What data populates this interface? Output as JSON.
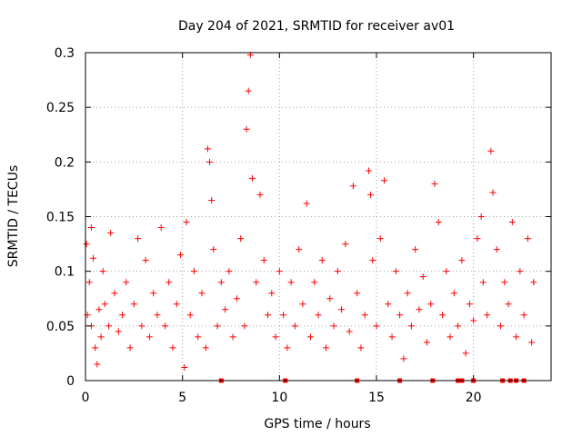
{
  "chart_data": {
    "type": "scatter",
    "title": "Day 204 of 2021, SRMTID for receiver av01",
    "xlabel": "GPS time / hours",
    "ylabel": "SRMTID / TECUs",
    "xlim": [
      0,
      24
    ],
    "ylim": [
      0,
      0.3
    ],
    "x_ticks": [
      0,
      5,
      10,
      15,
      20
    ],
    "x_tick_labels": [
      "0",
      "5",
      "10",
      "15",
      "20"
    ],
    "y_ticks": [
      0,
      0.05,
      0.1,
      0.15,
      0.2,
      0.25,
      0.3
    ],
    "y_tick_labels": [
      "0",
      "0.05",
      "0.1",
      "0.15",
      "0.2",
      "0.25",
      "0.3"
    ],
    "grid": true,
    "marker": "plus",
    "series_color": "#ff0000",
    "series": [
      {
        "name": "SRMTID",
        "points": [
          [
            0.05,
            0.125
          ],
          [
            0.1,
            0.06
          ],
          [
            0.2,
            0.09
          ],
          [
            0.3,
            0.14
          ],
          [
            0.3,
            0.05
          ],
          [
            0.4,
            0.112
          ],
          [
            0.5,
            0.03
          ],
          [
            0.6,
            0.015
          ],
          [
            0.7,
            0.065
          ],
          [
            0.8,
            0.04
          ],
          [
            0.9,
            0.1
          ],
          [
            1.0,
            0.07
          ],
          [
            1.2,
            0.05
          ],
          [
            1.3,
            0.135
          ],
          [
            1.5,
            0.08
          ],
          [
            1.7,
            0.045
          ],
          [
            1.9,
            0.06
          ],
          [
            2.1,
            0.09
          ],
          [
            2.3,
            0.03
          ],
          [
            2.5,
            0.07
          ],
          [
            2.7,
            0.13
          ],
          [
            2.9,
            0.05
          ],
          [
            3.1,
            0.11
          ],
          [
            3.3,
            0.04
          ],
          [
            3.5,
            0.08
          ],
          [
            3.7,
            0.06
          ],
          [
            3.9,
            0.14
          ],
          [
            4.1,
            0.05
          ],
          [
            4.3,
            0.09
          ],
          [
            4.5,
            0.03
          ],
          [
            4.7,
            0.07
          ],
          [
            4.9,
            0.115
          ],
          [
            5.1,
            0.012
          ],
          [
            5.2,
            0.145
          ],
          [
            5.4,
            0.06
          ],
          [
            5.6,
            0.1
          ],
          [
            5.8,
            0.04
          ],
          [
            6.0,
            0.08
          ],
          [
            6.2,
            0.03
          ],
          [
            6.3,
            0.212
          ],
          [
            6.4,
            0.2
          ],
          [
            6.5,
            0.165
          ],
          [
            6.6,
            0.12
          ],
          [
            6.8,
            0.05
          ],
          [
            7.0,
            0.09
          ],
          [
            7.2,
            0.065
          ],
          [
            7.4,
            0.1
          ],
          [
            7.6,
            0.04
          ],
          [
            7.8,
            0.075
          ],
          [
            8.0,
            0.13
          ],
          [
            8.2,
            0.05
          ],
          [
            8.3,
            0.23
          ],
          [
            8.4,
            0.265
          ],
          [
            8.5,
            0.298
          ],
          [
            8.6,
            0.185
          ],
          [
            8.8,
            0.09
          ],
          [
            9.0,
            0.17
          ],
          [
            9.2,
            0.11
          ],
          [
            9.4,
            0.06
          ],
          [
            9.6,
            0.08
          ],
          [
            9.8,
            0.04
          ],
          [
            10.0,
            0.1
          ],
          [
            10.2,
            0.06
          ],
          [
            10.4,
            0.03
          ],
          [
            10.6,
            0.09
          ],
          [
            10.8,
            0.05
          ],
          [
            11.0,
            0.12
          ],
          [
            11.2,
            0.07
          ],
          [
            11.4,
            0.162
          ],
          [
            11.6,
            0.04
          ],
          [
            11.8,
            0.09
          ],
          [
            12.0,
            0.06
          ],
          [
            12.2,
            0.11
          ],
          [
            12.4,
            0.03
          ],
          [
            12.6,
            0.075
          ],
          [
            12.8,
            0.05
          ],
          [
            13.0,
            0.1
          ],
          [
            13.2,
            0.065
          ],
          [
            13.4,
            0.125
          ],
          [
            13.6,
            0.045
          ],
          [
            13.8,
            0.178
          ],
          [
            14.0,
            0.08
          ],
          [
            14.2,
            0.03
          ],
          [
            14.4,
            0.06
          ],
          [
            14.6,
            0.192
          ],
          [
            14.7,
            0.17
          ],
          [
            14.8,
            0.11
          ],
          [
            15.0,
            0.05
          ],
          [
            15.2,
            0.13
          ],
          [
            15.4,
            0.183
          ],
          [
            15.6,
            0.07
          ],
          [
            15.8,
            0.04
          ],
          [
            16.0,
            0.1
          ],
          [
            16.2,
            0.06
          ],
          [
            16.4,
            0.02
          ],
          [
            16.6,
            0.08
          ],
          [
            16.8,
            0.05
          ],
          [
            17.0,
            0.12
          ],
          [
            17.2,
            0.065
          ],
          [
            17.4,
            0.095
          ],
          [
            17.6,
            0.035
          ],
          [
            17.8,
            0.07
          ],
          [
            18.0,
            0.18
          ],
          [
            18.2,
            0.145
          ],
          [
            18.4,
            0.06
          ],
          [
            18.6,
            0.1
          ],
          [
            18.8,
            0.04
          ],
          [
            19.0,
            0.08
          ],
          [
            19.2,
            0.05
          ],
          [
            19.4,
            0.11
          ],
          [
            19.6,
            0.025
          ],
          [
            19.8,
            0.07
          ],
          [
            20.0,
            0.055
          ],
          [
            20.2,
            0.13
          ],
          [
            20.4,
            0.15
          ],
          [
            20.5,
            0.09
          ],
          [
            20.7,
            0.06
          ],
          [
            20.9,
            0.21
          ],
          [
            21.0,
            0.172
          ],
          [
            21.2,
            0.12
          ],
          [
            21.4,
            0.05
          ],
          [
            21.6,
            0.09
          ],
          [
            21.8,
            0.07
          ],
          [
            22.0,
            0.145
          ],
          [
            22.2,
            0.04
          ],
          [
            22.4,
            0.1
          ],
          [
            22.6,
            0.06
          ],
          [
            22.8,
            0.13
          ],
          [
            23.0,
            0.035
          ],
          [
            23.1,
            0.09
          ]
        ]
      }
    ],
    "zero_markers_x": [
      7.0,
      10.3,
      14.0,
      16.2,
      17.9,
      19.2,
      19.4,
      20.0,
      21.5,
      21.9,
      22.2,
      22.6
    ]
  }
}
